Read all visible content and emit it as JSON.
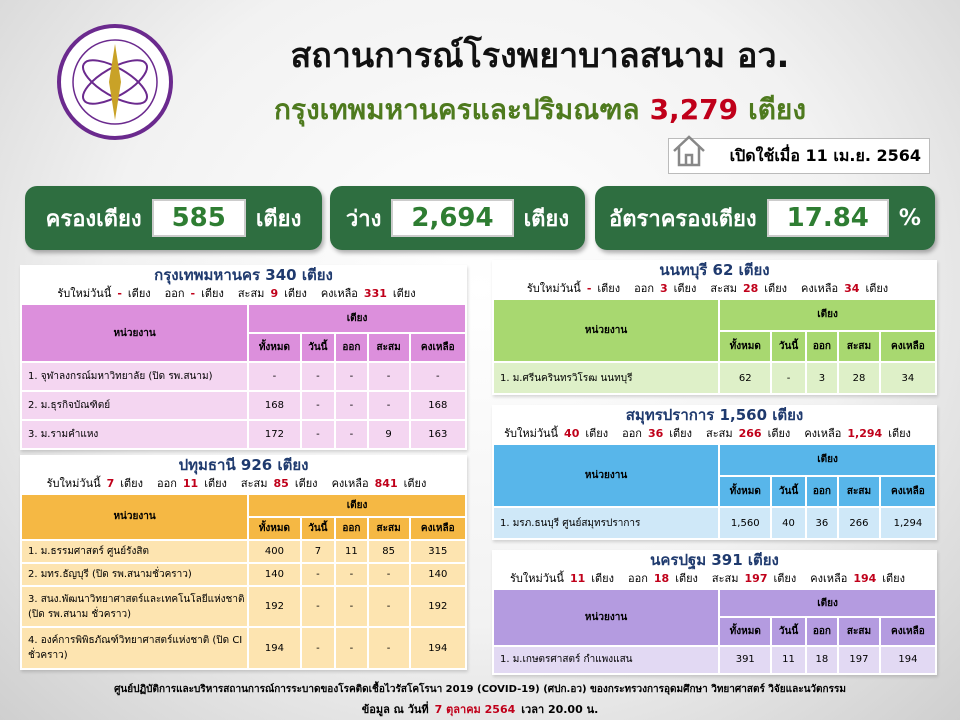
{
  "header": {
    "title": "สถานการณ์โรงพยาบาลสนาม อว.",
    "subtitle": "กรุงเทพมหานครและปริมณฑล",
    "total": "3,279",
    "unit": "เตียง",
    "opened": "เปิดใช้เมื่อ 11 เม.ย. 2564"
  },
  "stats": [
    {
      "label": "ครองเตียง",
      "value": "585",
      "unit": "เตียง"
    },
    {
      "label": "ว่าง",
      "value": "2,694",
      "unit": "เตียง"
    },
    {
      "label": "อัตราครองเตียง",
      "value": "17.84",
      "unit": "%"
    }
  ],
  "table_header": {
    "unit": "หน่วยงาน",
    "beds": "เตียง",
    "columns": [
      "ทั้งหมด",
      "วันนี้",
      "ออก",
      "สะสม",
      "คงเหลือ"
    ]
  },
  "provinces": [
    {
      "title": "กรุงเทพมหานคร  340  เตียง",
      "summary": [
        {
          "label": "รับใหม่วันนี้",
          "value": "-",
          "unit": "เตียง"
        },
        {
          "label": "ออก",
          "value": "-",
          "unit": "เตียง"
        },
        {
          "label": "สะสม",
          "value": "9",
          "unit": "เตียง"
        },
        {
          "label": "คงเหลือ",
          "value": "331",
          "unit": "เตียง"
        }
      ],
      "rows": [
        [
          "1. จุฬาลงกรณ์มหาวิทยาลัย (ปิด รพ.สนาม)",
          "-",
          "-",
          "-",
          "-",
          "-"
        ],
        [
          "2. ม.ธุรกิจบัณฑิตย์",
          "168",
          "-",
          "-",
          "-",
          "168"
        ],
        [
          "3. ม.รามคำแหง",
          "172",
          "-",
          "-",
          "9",
          "163"
        ]
      ]
    },
    {
      "title": "ปทุมธานี 926 เตียง",
      "summary": [
        {
          "label": "รับใหม่วันนี้",
          "value": "7",
          "unit": "เตียง"
        },
        {
          "label": "ออก",
          "value": "11",
          "unit": "เตียง"
        },
        {
          "label": "สะสม",
          "value": "85",
          "unit": "เตียง"
        },
        {
          "label": "คงเหลือ",
          "value": "841",
          "unit": "เตียง"
        }
      ],
      "rows": [
        [
          "1. ม.ธรรมศาสตร์ ศูนย์รังสิต",
          "400",
          "7",
          "11",
          "85",
          "315"
        ],
        [
          "2. มทร.ธัญบุรี (ปิด รพ.สนามชั่วคราว)",
          "140",
          "-",
          "-",
          "-",
          "140"
        ],
        [
          "3. สนง.พัฒนาวิทยาศาสตร์และเทคโนโลยีแห่งชาติ (ปิด รพ.สนาม ชั่วคราว)",
          "192",
          "-",
          "-",
          "-",
          "192"
        ],
        [
          "4. องค์การพิพิธภัณฑ์วิทยาศาสตร์แห่งชาติ (ปิด CI ชั่วคราว)",
          "194",
          "-",
          "-",
          "-",
          "194"
        ]
      ]
    },
    {
      "title": "นนทบุรี 62 เตียง",
      "summary": [
        {
          "label": "รับใหม่วันนี้",
          "value": "-",
          "unit": "เตียง"
        },
        {
          "label": "ออก",
          "value": "3",
          "unit": "เตียง"
        },
        {
          "label": "สะสม",
          "value": "28",
          "unit": "เตียง"
        },
        {
          "label": "คงเหลือ",
          "value": "34",
          "unit": "เตียง"
        }
      ],
      "rows": [
        [
          "1. ม.ศรีนครินทรวิโรฒ นนทบุรี",
          "62",
          "-",
          "3",
          "28",
          "34"
        ]
      ]
    },
    {
      "title": "สมุทรปราการ 1,560 เตียง",
      "summary": [
        {
          "label": "รับใหม่วันนี้",
          "value": "40",
          "unit": "เตียง"
        },
        {
          "label": "ออก",
          "value": "36",
          "unit": "เตียง"
        },
        {
          "label": "สะสม",
          "value": "266",
          "unit": "เตียง"
        },
        {
          "label": "คงเหลือ",
          "value": "1,294",
          "unit": "เตียง"
        }
      ],
      "rows": [
        [
          "1. มรภ.ธนบุรี ศูนย์สมุทรปราการ",
          "1,560",
          "40",
          "36",
          "266",
          "1,294"
        ]
      ]
    },
    {
      "title": "นครปฐม 391 เตียง",
      "summary": [
        {
          "label": "รับใหม่วันนี้",
          "value": "11",
          "unit": "เตียง"
        },
        {
          "label": "ออก",
          "value": "18",
          "unit": "เตียง"
        },
        {
          "label": "สะสม",
          "value": "197",
          "unit": "เตียง"
        },
        {
          "label": "คงเหลือ",
          "value": "194",
          "unit": "เตียง"
        }
      ],
      "rows": [
        [
          "1. ม.เกษตรศาสตร์ กำแพงแสน",
          "391",
          "11",
          "18",
          "197",
          "194"
        ]
      ]
    }
  ],
  "footer": {
    "source": "ศูนย์ปฏิบัติการและบริหารสถานการณ์การระบาดของโรคติดเชื้อไวรัสโคโรนา 2019 (COVID-19) (ศปก.อว) ของกระทรวงการอุดมศึกษา วิทยาศาสตร์ วิจัยและนวัตกรรม",
    "date_label": "ข้อมูล ณ วันที่",
    "date": "7 ตุลาคม 2564",
    "time": "เวลา 20.00 น."
  }
}
